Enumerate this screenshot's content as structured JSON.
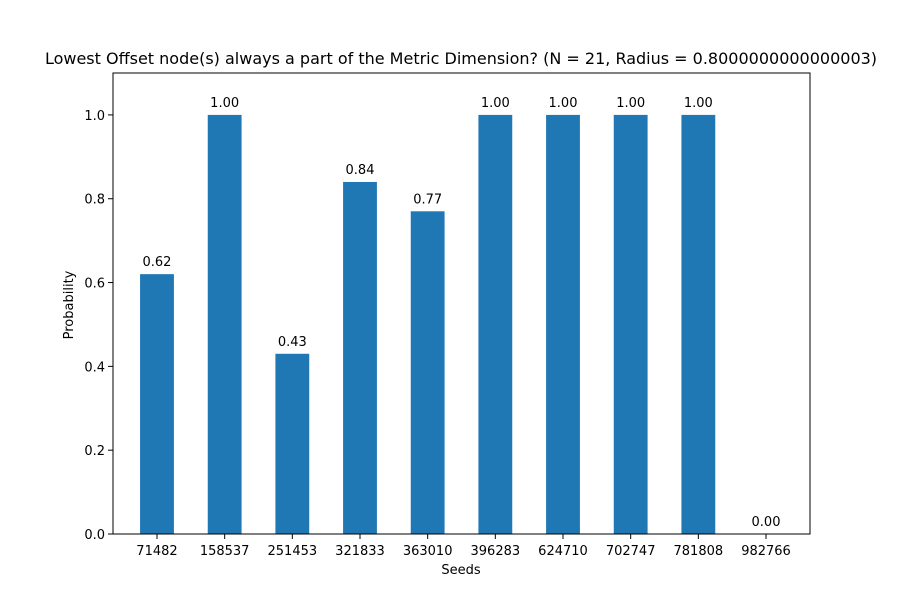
{
  "chart_data": {
    "type": "bar",
    "title": "Lowest Offset node(s) always a part of the Metric Dimension? (N = 21, Radius = 0.8000000000000003)",
    "xlabel": "Seeds",
    "ylabel": "Probability",
    "categories": [
      "71482",
      "158537",
      "251453",
      "321833",
      "363010",
      "396283",
      "624710",
      "702747",
      "781808",
      "982766"
    ],
    "values": [
      0.62,
      1.0,
      0.43,
      0.84,
      0.77,
      1.0,
      1.0,
      1.0,
      1.0,
      0.0
    ],
    "data_labels": [
      "0.62",
      "1.00",
      "0.43",
      "0.84",
      "0.77",
      "1.00",
      "1.00",
      "1.00",
      "1.00",
      "0.00"
    ],
    "ylim": [
      0,
      1.1
    ],
    "yticks": [
      0.0,
      0.2,
      0.4,
      0.6,
      0.8,
      1.0
    ],
    "ytick_labels": [
      "0.0",
      "0.2",
      "0.4",
      "0.6",
      "0.8",
      "1.0"
    ],
    "grid": false,
    "legend": "none",
    "bar_color": "#1f77b4"
  }
}
